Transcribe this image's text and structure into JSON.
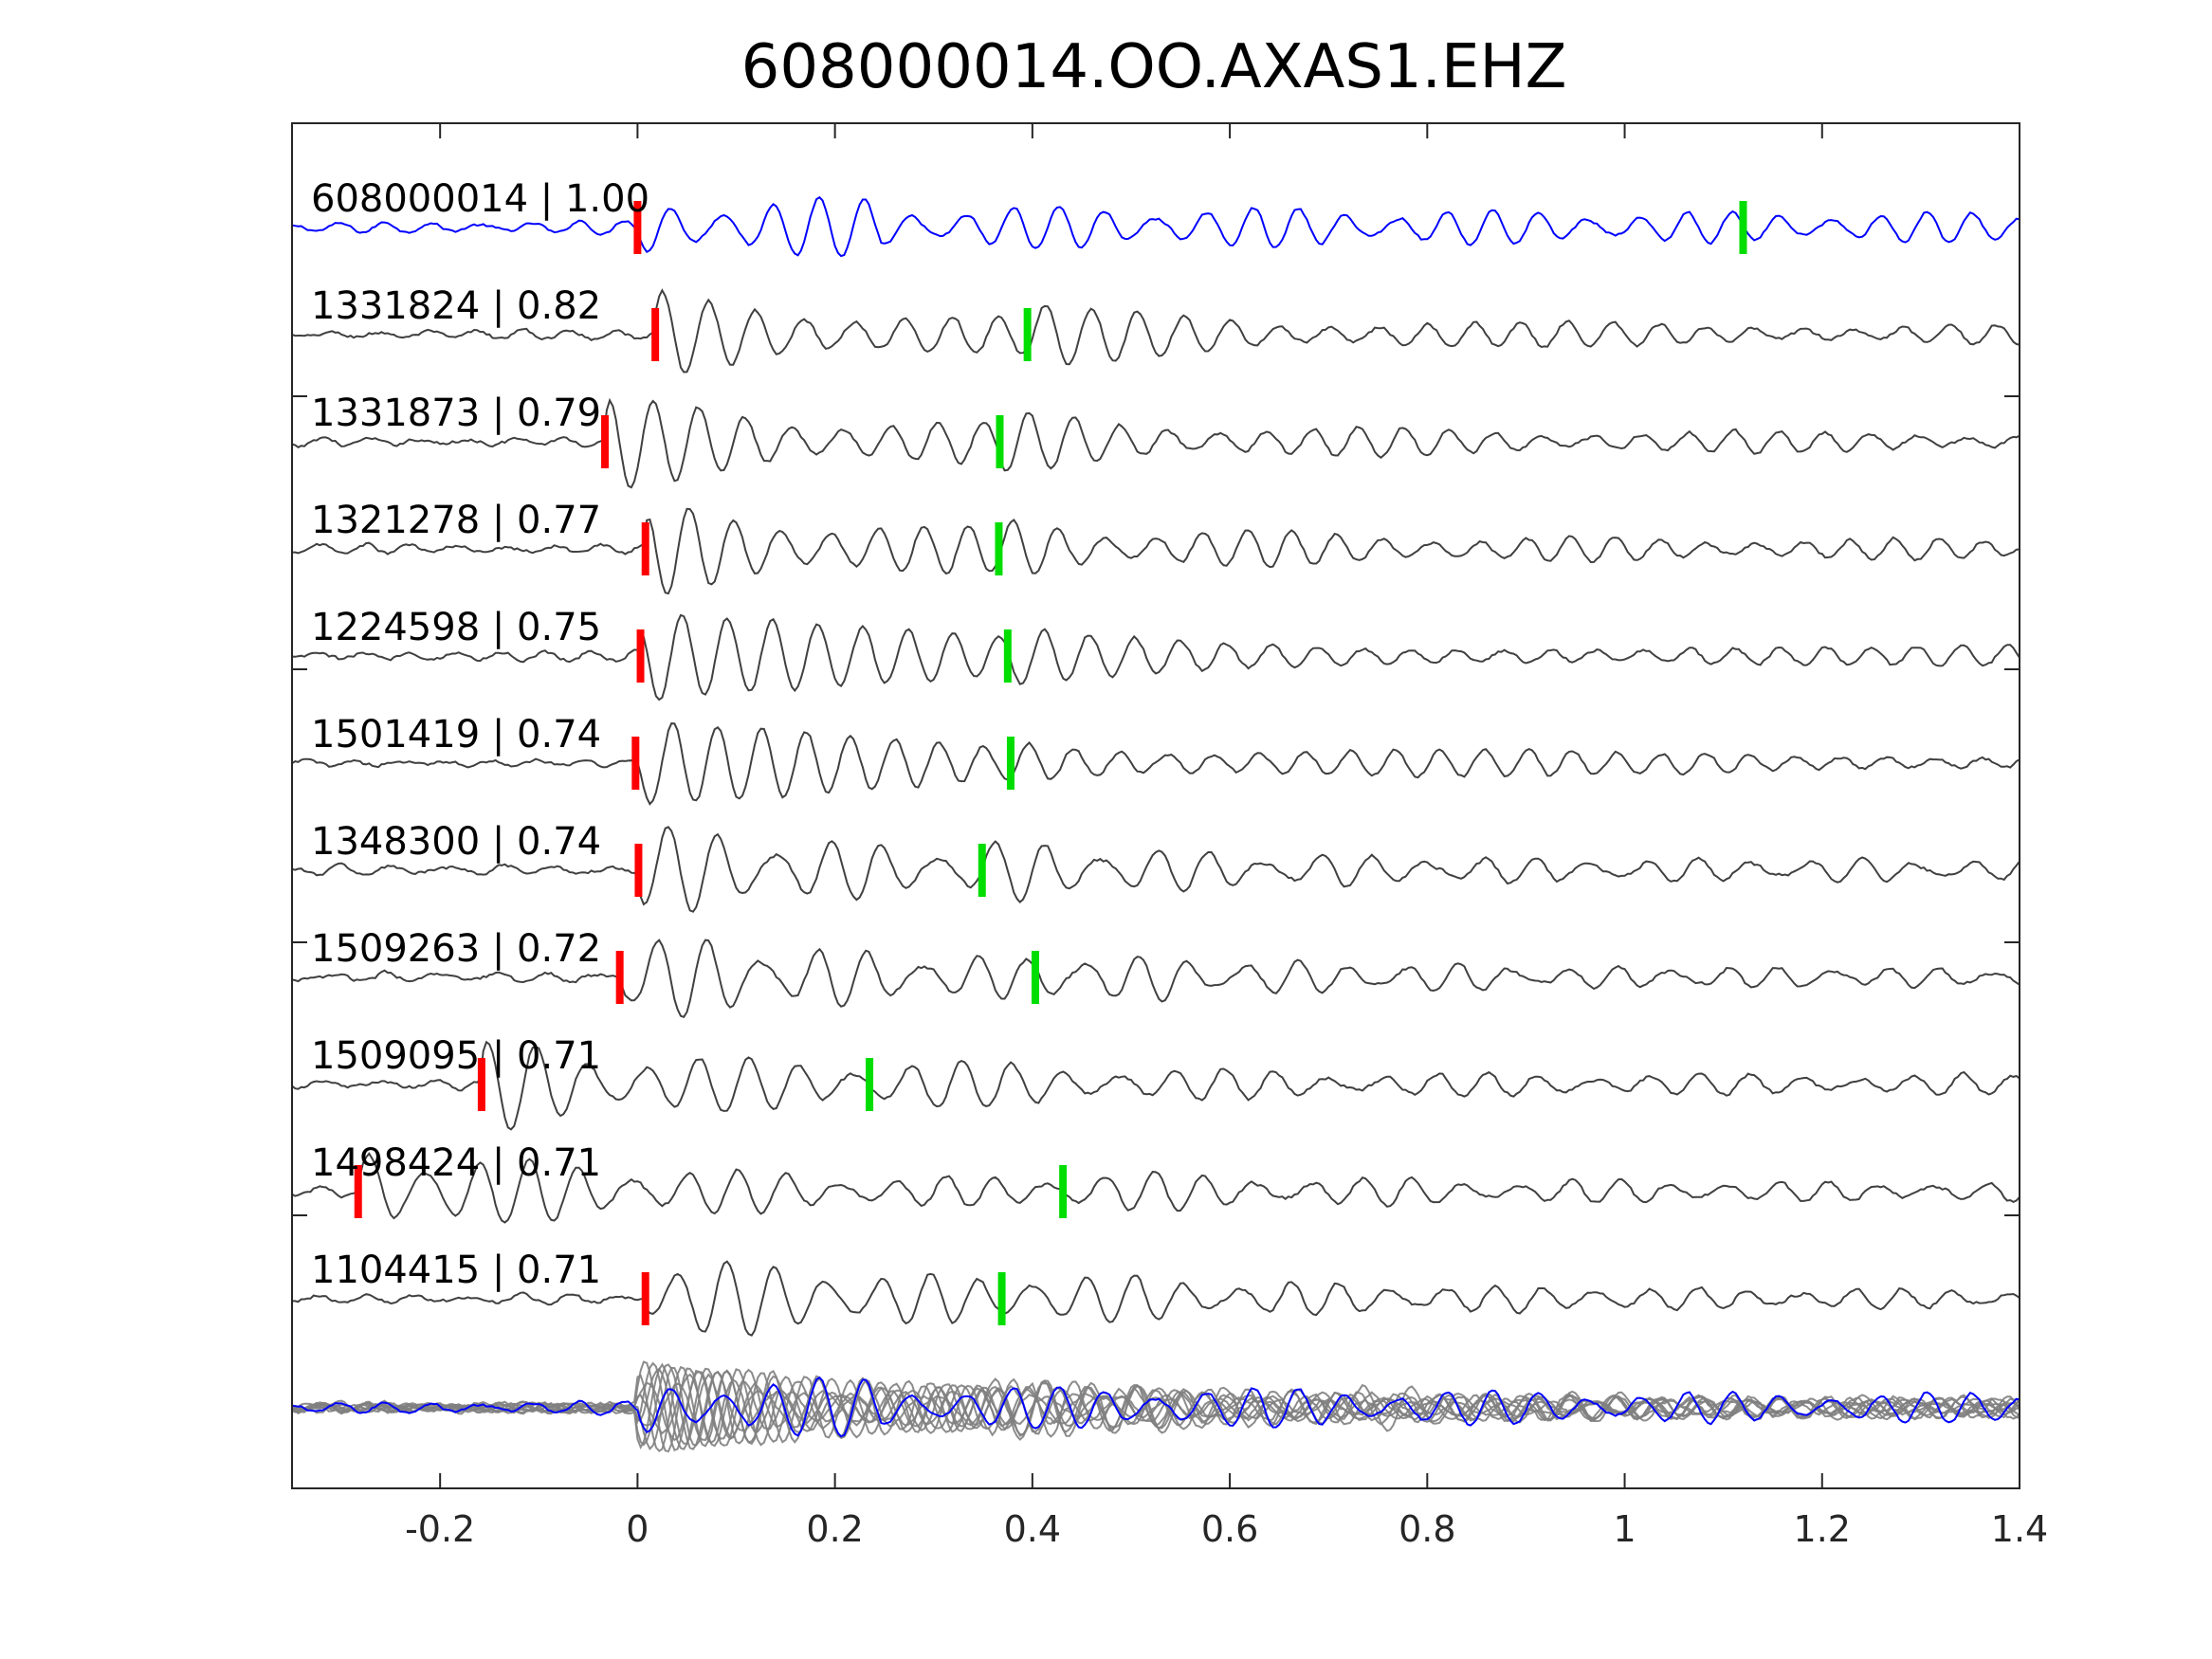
{
  "chart_data": {
    "type": "line",
    "title": "608000014.OO.AXAS1.EHZ",
    "xlabel": "",
    "ylabel": "",
    "xlim": [
      -0.35,
      1.4
    ],
    "xticks": [
      -0.2,
      0,
      0.2,
      0.4,
      0.6,
      0.8,
      1,
      1.2,
      1.4
    ],
    "xtick_labels": [
      "-0.2",
      "0",
      "0.2",
      "0.4",
      "0.6",
      "0.8",
      "1",
      "1.2",
      "1.4"
    ],
    "grid": false,
    "legend": "none",
    "colors": {
      "reference_trace": "#0000ff",
      "template_trace": "#404040",
      "stack_trace": "#808080",
      "p_pick": "#ff0000",
      "s_pick": "#00dd00",
      "axes": "#262626"
    },
    "traces": [
      {
        "label": "608000014 | 1.00",
        "event_id": "608000014",
        "cc": 1.0,
        "p_pick": 0.0,
        "s_pick": 1.12
      },
      {
        "label": "1331824 | 0.82",
        "event_id": "1331824",
        "cc": 0.82,
        "p_pick": 0.018,
        "s_pick": 0.395
      },
      {
        "label": "1331873 | 0.79",
        "event_id": "1331873",
        "cc": 0.79,
        "p_pick": -0.033,
        "s_pick": 0.367
      },
      {
        "label": "1321278 | 0.77",
        "event_id": "1321278",
        "cc": 0.77,
        "p_pick": 0.008,
        "s_pick": 0.366
      },
      {
        "label": "1224598 | 0.75",
        "event_id": "1224598",
        "cc": 0.75,
        "p_pick": 0.003,
        "s_pick": 0.375
      },
      {
        "label": "1501419 | 0.74",
        "event_id": "1501419",
        "cc": 0.74,
        "p_pick": -0.002,
        "s_pick": 0.378
      },
      {
        "label": "1348300 | 0.74",
        "event_id": "1348300",
        "cc": 0.74,
        "p_pick": 0.001,
        "s_pick": 0.349
      },
      {
        "label": "1509263 | 0.72",
        "event_id": "1509263",
        "cc": 0.72,
        "p_pick": -0.018,
        "s_pick": 0.403
      },
      {
        "label": "1509095 | 0.71",
        "event_id": "1509095",
        "cc": 0.71,
        "p_pick": -0.158,
        "s_pick": 0.235
      },
      {
        "label": "1498424 | 0.71",
        "event_id": "1498424",
        "cc": 0.71,
        "p_pick": -0.283,
        "s_pick": 0.431
      },
      {
        "label": "1104415 | 0.71",
        "event_id": "1104415",
        "cc": 0.71,
        "p_pick": 0.008,
        "s_pick": 0.369
      }
    ]
  }
}
